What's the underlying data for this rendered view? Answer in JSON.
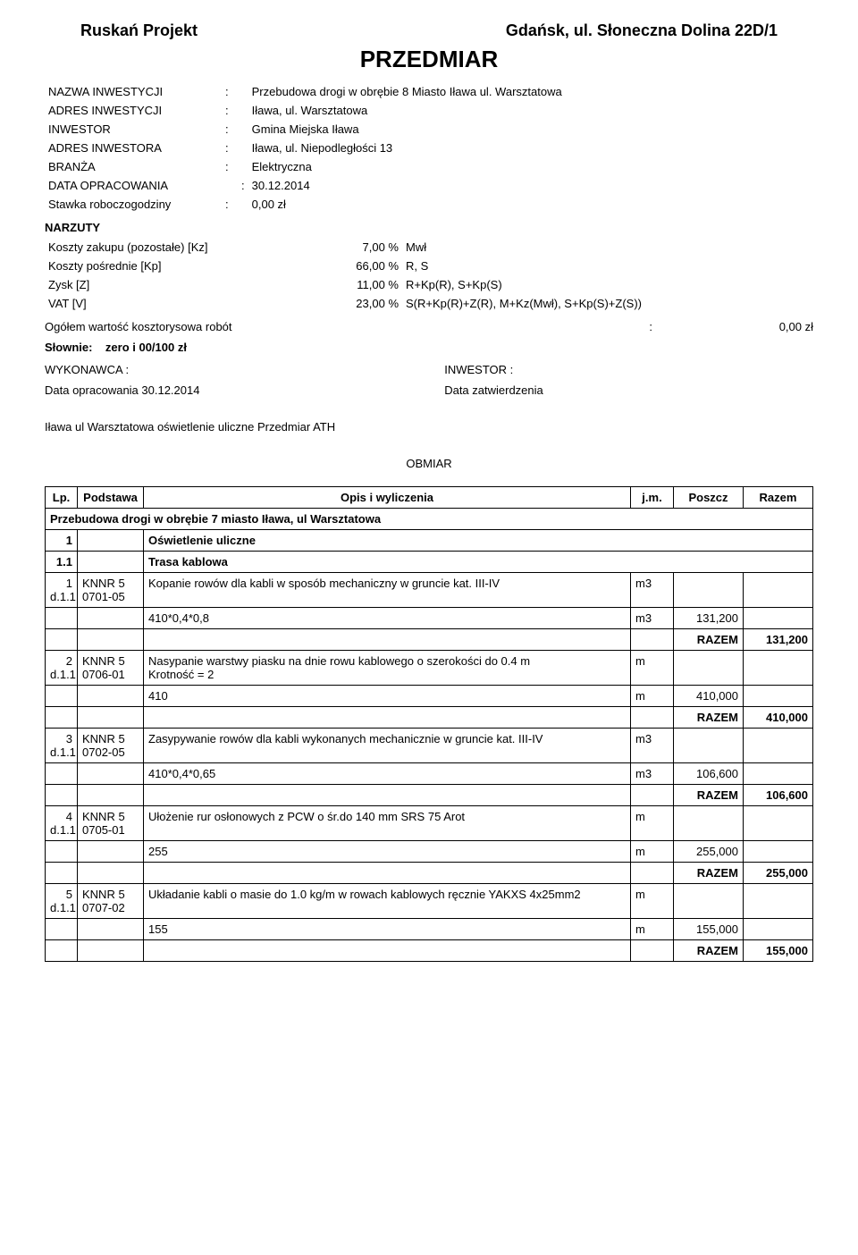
{
  "header": {
    "company": "Ruskań Projekt",
    "address": "Gdańsk, ul. Słoneczna Dolina 22D/1",
    "title": "PRZEDMIAR"
  },
  "meta": [
    {
      "label": "NAZWA INWESTYCJI",
      "value": "Przebudowa drogi w obrębie 8 Miasto Iława ul. Warsztatowa"
    },
    {
      "label": "ADRES INWESTYCJI",
      "value": "Iława, ul. Warsztatowa"
    },
    {
      "label": "INWESTOR",
      "value": "Gmina Miejska Iława"
    },
    {
      "label": "ADRES INWESTORA",
      "value": "Iława, ul. Niepodległości 13"
    },
    {
      "label": "BRANŻA",
      "value": "Elektryczna"
    },
    {
      "label": "DATA OPRACOWANIA",
      "value": "30.12.2014"
    },
    {
      "label": "Stawka roboczogodziny",
      "value": "0,00 zł"
    }
  ],
  "narzuty": {
    "heading": "NARZUTY",
    "rows": [
      {
        "label": "Koszty zakupu (pozostałe) [Kz]",
        "pct": "7,00 %",
        "basis": "Mwł"
      },
      {
        "label": "Koszty pośrednie [Kp]",
        "pct": "66,00 %",
        "basis": "R, S"
      },
      {
        "label": "Zysk [Z]",
        "pct": "11,00 %",
        "basis": "R+Kp(R), S+Kp(S)"
      },
      {
        "label": "VAT [V]",
        "pct": "23,00 %",
        "basis": "S(R+Kp(R)+Z(R), M+Kz(Mwł), S+Kp(S)+Z(S))"
      }
    ]
  },
  "summary": {
    "label": "Ogółem wartość kosztorysowa robót",
    "colon": ":",
    "value": "0,00 zł"
  },
  "slownie": {
    "prefix": "Słownie:",
    "value": "zero i 00/100 zł"
  },
  "signatures": {
    "left1": "WYKONAWCA :",
    "left2": "Data opracowania 30.12.2014",
    "right1": "INWESTOR :",
    "right2": "Data zatwierdzenia"
  },
  "subtitle": "Iława ul Warsztatowa oświetlenie uliczne Przedmiar ATH",
  "obmiar_label": "OBMIAR",
  "table": {
    "headers": {
      "lp": "Lp.",
      "podstawa": "Podstawa",
      "opis": "Opis i wyliczenia",
      "jm": "j.m.",
      "poszcz": "Poszcz",
      "razem": "Razem"
    },
    "section_title": "Przebudowa drogi w obrębie 7 miasto Iława, ul Warsztatowa",
    "group1": {
      "no": "1",
      "title": "Oświetlenie uliczne"
    },
    "group11": {
      "no": "1.1",
      "title": "Trasa kablowa"
    },
    "razem_label": "RAZEM",
    "items": [
      {
        "lp": "1\nd.1.1",
        "pod": "KNNR 5\n0701-05",
        "opis": "Kopanie rowów dla kabli w sposób mechaniczny w gruncie kat. III-IV",
        "jm": "m3",
        "calc": "410*0,4*0,8",
        "calc_jm": "m3",
        "calc_val": "131,200",
        "razem": "131,200"
      },
      {
        "lp": "2\nd.1.1",
        "pod": "KNNR 5\n0706-01",
        "opis": "Nasypanie warstwy piasku na dnie rowu kablowego o szerokości do 0.4 m\nKrotność = 2",
        "jm": "m",
        "calc": "410",
        "calc_jm": "m",
        "calc_val": "410,000",
        "razem": "410,000"
      },
      {
        "lp": "3\nd.1.1",
        "pod": "KNNR 5\n0702-05",
        "opis": "Zasypywanie rowów dla kabli wykonanych mechanicznie w gruncie kat. III-IV",
        "jm": "m3",
        "calc": "410*0,4*0,65",
        "calc_jm": "m3",
        "calc_val": "106,600",
        "razem": "106,600"
      },
      {
        "lp": "4\nd.1.1",
        "pod": "KNNR 5\n0705-01",
        "opis": "Ułożenie rur osłonowych z PCW o śr.do 140 mm SRS 75 Arot",
        "jm": "m",
        "calc": "255",
        "calc_jm": "m",
        "calc_val": "255,000",
        "razem": "255,000"
      },
      {
        "lp": "5\nd.1.1",
        "pod": "KNNR 5\n0707-02",
        "opis": "Układanie kabli o masie do 1.0 kg/m w rowach kablowych ręcznie YAKXS 4x25mm2",
        "jm": "m",
        "calc": "155",
        "calc_jm": "m",
        "calc_val": "155,000",
        "razem": "155,000"
      }
    ]
  }
}
